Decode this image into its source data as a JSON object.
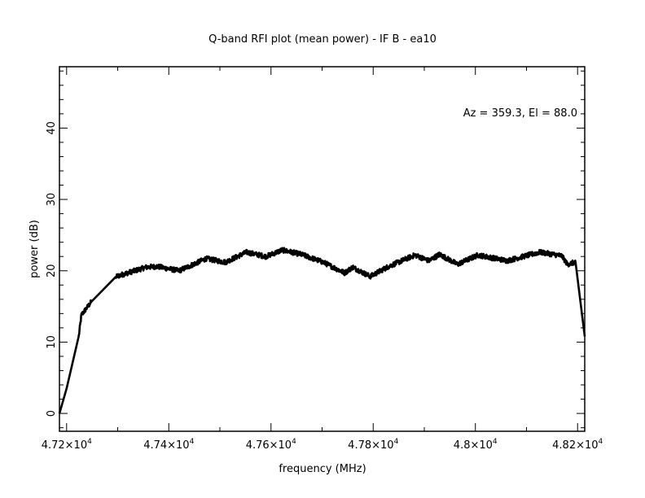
{
  "chart_data": {
    "type": "line",
    "title": "Q-band RFI plot (mean power) - IF B - ea10",
    "xlabel": "frequency (MHz)",
    "ylabel": "power (dB)",
    "annotation": "Az = 359.3, El = 88.0",
    "xlim": [
      47186,
      48214
    ],
    "ylim": [
      -2.5,
      48.6
    ],
    "x_ticks": [
      47200,
      47400,
      47600,
      47800,
      48000,
      48200
    ],
    "x_tick_labels": [
      {
        "mant": "4.72",
        "exp": "4"
      },
      {
        "mant": "4.74",
        "exp": "4"
      },
      {
        "mant": "4.76",
        "exp": "4"
      },
      {
        "mant": "4.78",
        "exp": "4"
      },
      {
        "mant": "4.8",
        "exp": "4"
      },
      {
        "mant": "4.82",
        "exp": "4"
      }
    ],
    "x_minor_step": 100,
    "y_ticks": [
      0,
      10,
      20,
      30,
      40
    ],
    "y_tick_labels": [
      "0",
      "10",
      "20",
      "30",
      "40"
    ],
    "y_minor_step": 2,
    "grid": false,
    "series": [
      {
        "name": "mean power",
        "color": "#000000",
        "noise_db": 0.35,
        "x": [
          47186,
          47200,
          47224,
          47229,
          47249,
          47297,
          47356,
          47377,
          47420,
          47473,
          47511,
          47552,
          47590,
          47622,
          47659,
          47702,
          47744,
          47760,
          47794,
          47830,
          47882,
          47909,
          47930,
          47965,
          48005,
          48062,
          48126,
          48169,
          48180,
          48196,
          48214
        ],
        "y": [
          0,
          3.5,
          10.9,
          13.8,
          15.7,
          19.2,
          20.5,
          20.6,
          20.0,
          21.7,
          21.2,
          22.6,
          22.0,
          22.9,
          22.3,
          21.2,
          19.7,
          20.5,
          19.2,
          20.6,
          22.2,
          21.4,
          22.3,
          20.9,
          22.2,
          21.4,
          22.6,
          22.1,
          20.9,
          21.2,
          10.8
        ]
      }
    ]
  }
}
